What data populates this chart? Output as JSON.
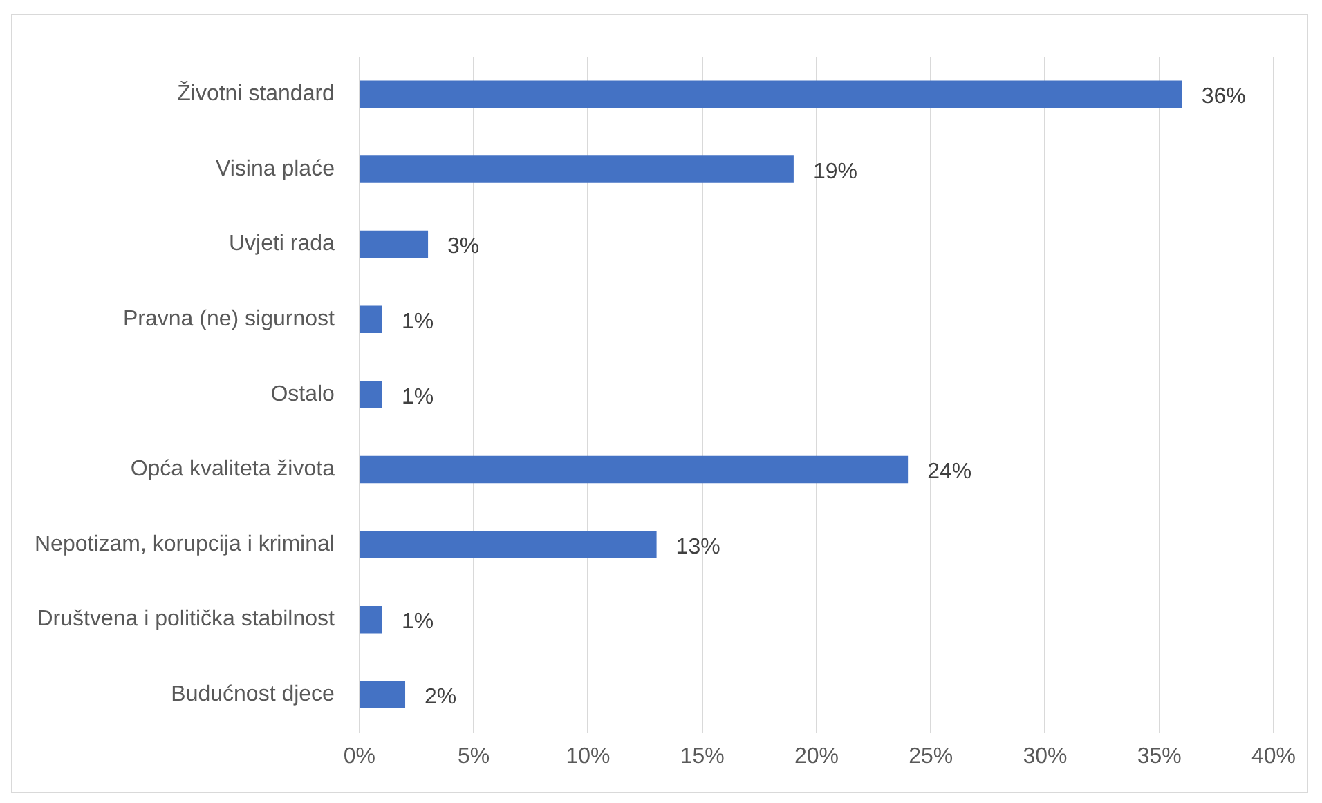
{
  "chart_data": {
    "type": "bar",
    "orientation": "horizontal",
    "categories": [
      "Životni standard",
      "Visina plaće",
      "Uvjeti rada",
      "Pravna (ne) sigurnost",
      "Ostalo",
      "Opća kvaliteta života",
      "Nepotizam, korupcija i kriminal",
      "Društvena i politička stabilnost",
      "Budućnost djece"
    ],
    "values": [
      36,
      19,
      3,
      1,
      1,
      24,
      13,
      1,
      2
    ],
    "value_labels": [
      "36%",
      "19%",
      "3%",
      "1%",
      "1%",
      "24%",
      "13%",
      "1%",
      "2%"
    ],
    "color": "#4472c4",
    "xlim": [
      0,
      40
    ],
    "xticks": [
      {
        "value": 0,
        "label": "0%"
      },
      {
        "value": 5,
        "label": "5%"
      },
      {
        "value": 10,
        "label": "10%"
      },
      {
        "value": 15,
        "label": "15%"
      },
      {
        "value": 20,
        "label": "20%"
      },
      {
        "value": 25,
        "label": "25%"
      },
      {
        "value": 30,
        "label": "30%"
      },
      {
        "value": 35,
        "label": "35%"
      },
      {
        "value": 40,
        "label": "40%"
      }
    ],
    "grid": "x",
    "legend": false
  }
}
